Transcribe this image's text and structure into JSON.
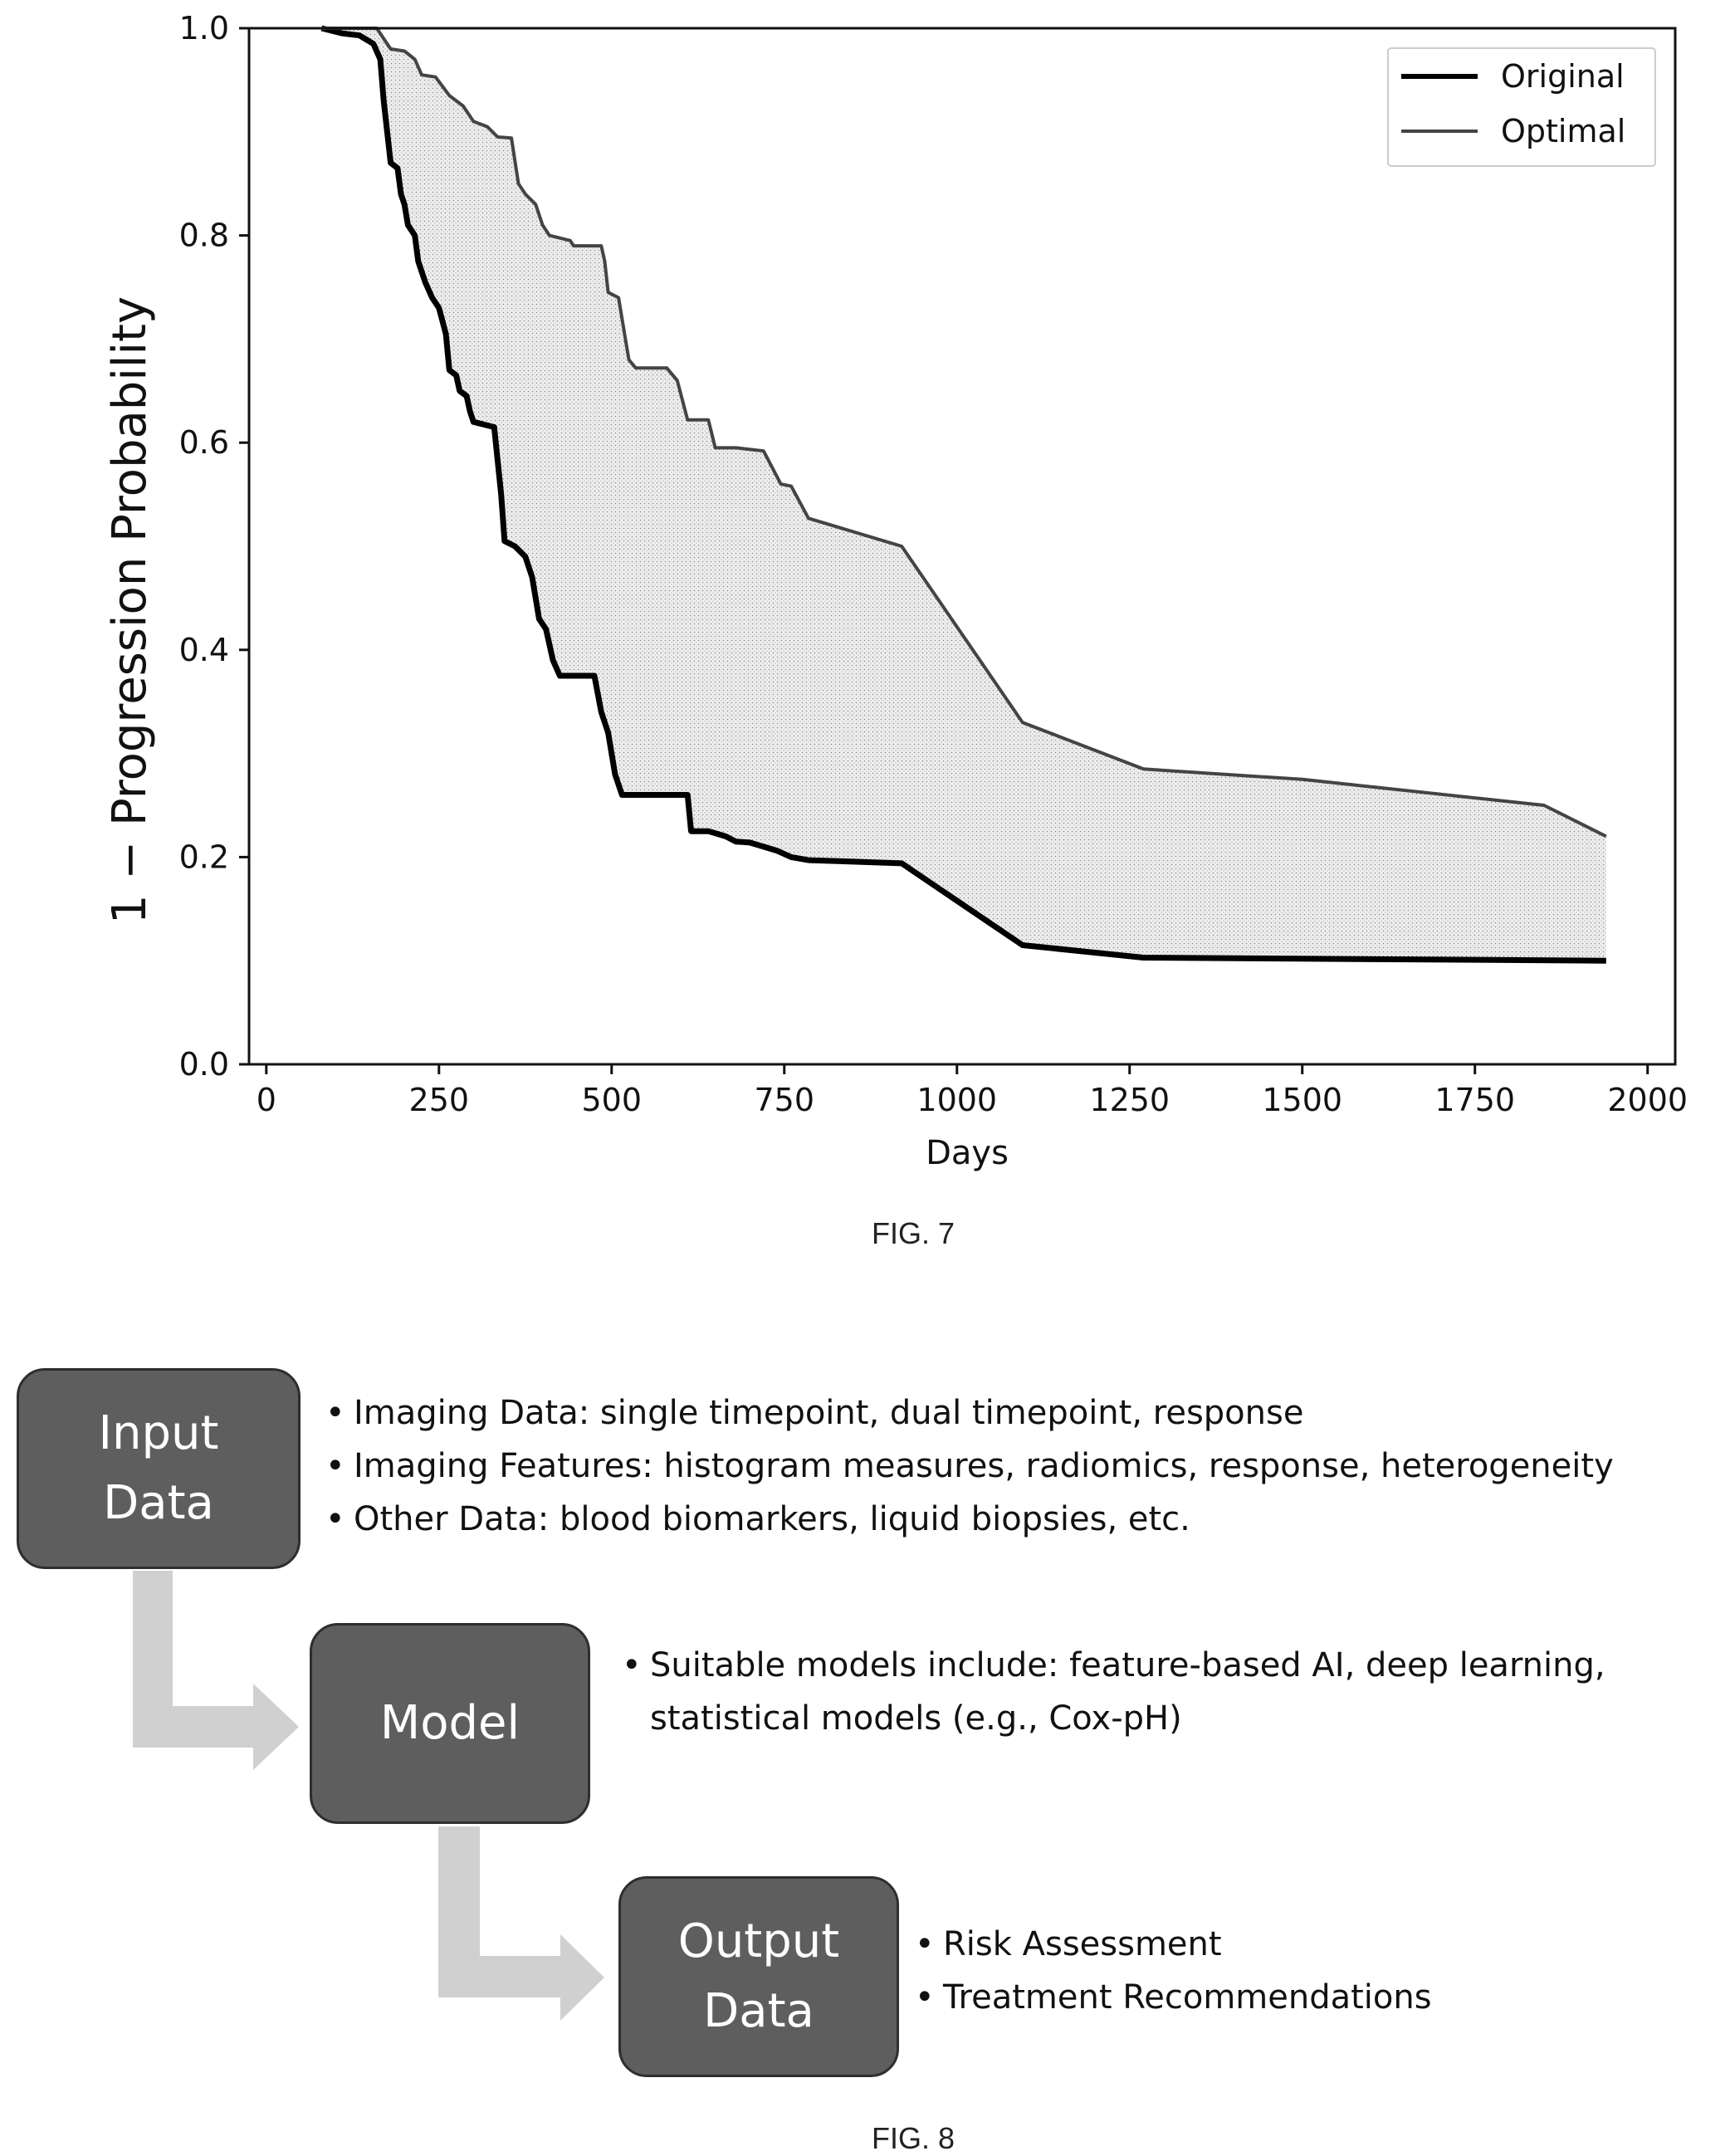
{
  "fig7": {
    "caption": "FIG. 7",
    "chart_data": {
      "type": "line",
      "xlabel": "Days",
      "ylabel": "1 − Progression Probability",
      "xlim": [
        -25,
        2040
      ],
      "ylim": [
        0,
        1.0
      ],
      "x_ticks": [
        "0",
        "250",
        "500",
        "750",
        "1000",
        "1250",
        "1500",
        "1750",
        "2000"
      ],
      "y_ticks": [
        "0.0",
        "0.2",
        "0.4",
        "0.6",
        "0.8",
        "1.0"
      ],
      "legend_position": "top-right",
      "shaded_region": "between Original and Optimal",
      "grid": false,
      "series": [
        {
          "name": "Original",
          "color": "#000000",
          "points": [
            [
              80,
              1.0
            ],
            [
              110,
              0.995
            ],
            [
              135,
              0.993
            ],
            [
              155,
              0.985
            ],
            [
              165,
              0.97
            ],
            [
              170,
              0.93
            ],
            [
              175,
              0.9
            ],
            [
              180,
              0.87
            ],
            [
              190,
              0.865
            ],
            [
              195,
              0.84
            ],
            [
              200,
              0.83
            ],
            [
              205,
              0.81
            ],
            [
              215,
              0.8
            ],
            [
              220,
              0.775
            ],
            [
              230,
              0.755
            ],
            [
              240,
              0.74
            ],
            [
              250,
              0.73
            ],
            [
              260,
              0.705
            ],
            [
              265,
              0.67
            ],
            [
              275,
              0.665
            ],
            [
              280,
              0.65
            ],
            [
              290,
              0.645
            ],
            [
              295,
              0.63
            ],
            [
              300,
              0.62
            ],
            [
              330,
              0.615
            ],
            [
              340,
              0.55
            ],
            [
              345,
              0.505
            ],
            [
              360,
              0.5
            ],
            [
              375,
              0.49
            ],
            [
              385,
              0.47
            ],
            [
              395,
              0.43
            ],
            [
              405,
              0.42
            ],
            [
              415,
              0.39
            ],
            [
              425,
              0.375
            ],
            [
              475,
              0.375
            ],
            [
              485,
              0.34
            ],
            [
              495,
              0.32
            ],
            [
              505,
              0.28
            ],
            [
              515,
              0.26
            ],
            [
              610,
              0.26
            ],
            [
              615,
              0.225
            ],
            [
              640,
              0.225
            ],
            [
              665,
              0.22
            ],
            [
              680,
              0.215
            ],
            [
              700,
              0.214
            ],
            [
              740,
              0.206
            ],
            [
              760,
              0.2
            ],
            [
              785,
              0.197
            ],
            [
              920,
              0.194
            ],
            [
              1095,
              0.115
            ],
            [
              1270,
              0.103
            ],
            [
              1940,
              0.1
            ]
          ]
        },
        {
          "name": "Optimal",
          "color": "#444444",
          "points": [
            [
              80,
              1.0
            ],
            [
              160,
              1.0
            ],
            [
              170,
              0.99
            ],
            [
              180,
              0.98
            ],
            [
              200,
              0.978
            ],
            [
              215,
              0.97
            ],
            [
              225,
              0.955
            ],
            [
              245,
              0.953
            ],
            [
              265,
              0.935
            ],
            [
              275,
              0.93
            ],
            [
              285,
              0.925
            ],
            [
              300,
              0.91
            ],
            [
              320,
              0.905
            ],
            [
              335,
              0.895
            ],
            [
              355,
              0.894
            ],
            [
              365,
              0.85
            ],
            [
              375,
              0.84
            ],
            [
              390,
              0.83
            ],
            [
              400,
              0.81
            ],
            [
              410,
              0.8
            ],
            [
              440,
              0.795
            ],
            [
              445,
              0.79
            ],
            [
              485,
              0.79
            ],
            [
              490,
              0.775
            ],
            [
              495,
              0.745
            ],
            [
              510,
              0.74
            ],
            [
              520,
              0.7
            ],
            [
              525,
              0.68
            ],
            [
              535,
              0.672
            ],
            [
              580,
              0.672
            ],
            [
              595,
              0.66
            ],
            [
              610,
              0.622
            ],
            [
              640,
              0.622
            ],
            [
              650,
              0.595
            ],
            [
              680,
              0.595
            ],
            [
              720,
              0.592
            ],
            [
              745,
              0.56
            ],
            [
              760,
              0.558
            ],
            [
              785,
              0.527
            ],
            [
              920,
              0.5
            ],
            [
              1095,
              0.33
            ],
            [
              1270,
              0.285
            ],
            [
              1500,
              0.275
            ],
            [
              1850,
              0.25
            ],
            [
              1940,
              0.22
            ]
          ]
        }
      ]
    }
  },
  "fig8": {
    "caption": "FIG. 8",
    "boxes": {
      "input": [
        "Input",
        "Data"
      ],
      "model": [
        "Model"
      ],
      "output": [
        "Output",
        "Data"
      ]
    },
    "bullets": {
      "input": [
        "Imaging Data: single timepoint, dual timepoint, response",
        "Imaging Features: histogram measures, radiomics, response, heterogeneity",
        "Other Data: blood biomarkers, liquid biopsies, etc."
      ],
      "model": [
        "Suitable models include: feature-based AI, deep learning,",
        "statistical models (e.g., Cox-pH)"
      ],
      "output": [
        "Risk Assessment",
        "Treatment Recommendations"
      ]
    },
    "colors": {
      "box_fill": "#5e5e5e",
      "box_border": "#2e2e2e",
      "arrow": "#d0d0d0"
    }
  }
}
